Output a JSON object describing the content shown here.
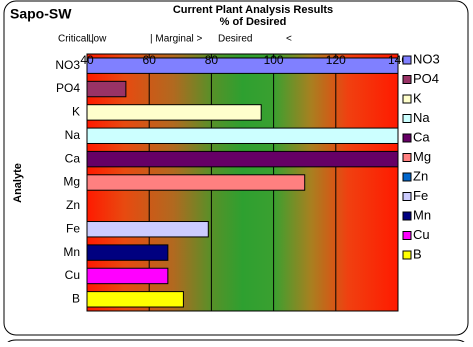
{
  "chart_data": {
    "type": "bar",
    "orientation": "horizontal",
    "label": "Sapo-SW",
    "title": "Current Plant Analysis Results",
    "subtitle": "% of Desired",
    "zone_labels": [
      "Critical |",
      "Low",
      "| Marginal >",
      "Desired",
      "<"
    ],
    "y_label": "Analyte",
    "categories": [
      "NO3",
      "PO4",
      "K",
      "Na",
      "Ca",
      "Mg",
      "Zn",
      "Fe",
      "Mn",
      "Cu",
      "B"
    ],
    "values": [
      145,
      52.5,
      96,
      145,
      145,
      110,
      null,
      79,
      66,
      66,
      71
    ],
    "colors": [
      "#8080ff",
      "#993366",
      "#ffffcc",
      "#ccffff",
      "#660066",
      "#ff8080",
      "#0066cc",
      "#ccccff",
      "#000080",
      "#ff00ff",
      "#ffff00"
    ],
    "xlim": [
      40,
      140
    ],
    "xticks": [
      40,
      60,
      80,
      100,
      120,
      140
    ],
    "grid": true,
    "legend": "right"
  }
}
